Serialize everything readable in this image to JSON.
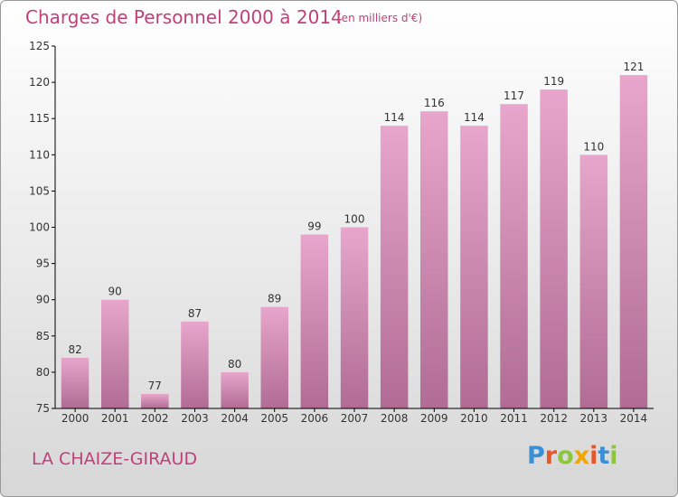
{
  "title": "Charges de Personnel 2000 à 2014",
  "subtitle": "(en milliers d'€)",
  "commune": "LA CHAIZE-GIRAUD",
  "logo": {
    "letters": [
      "P",
      "r",
      "o",
      "x",
      "i",
      "t",
      "i"
    ],
    "colors": [
      "#3b8fd6",
      "#e8562a",
      "#8cc63f",
      "#f0a500",
      "#e8562a",
      "#3b8fd6",
      "#8cc63f"
    ]
  },
  "colors": {
    "bar_top": "#e8a6cc",
    "bar_bottom": "#b06c94",
    "axis": "#000000",
    "text_accent": "#c2407a"
  },
  "chart_data": {
    "type": "bar",
    "title": "Charges de Personnel 2000 à 2014",
    "subtitle": "(en milliers d'€)",
    "categories": [
      "2000",
      "2001",
      "2002",
      "2003",
      "2004",
      "2005",
      "2006",
      "2007",
      "2008",
      "2009",
      "2010",
      "2011",
      "2012",
      "2013",
      "2014"
    ],
    "values": [
      82,
      90,
      77,
      87,
      80,
      89,
      99,
      100,
      114,
      116,
      114,
      117,
      119,
      110,
      121
    ],
    "ylim": [
      75,
      125
    ],
    "yticks": [
      75,
      80,
      85,
      90,
      95,
      100,
      105,
      110,
      115,
      120,
      125
    ],
    "grid": false,
    "legend": "none"
  }
}
